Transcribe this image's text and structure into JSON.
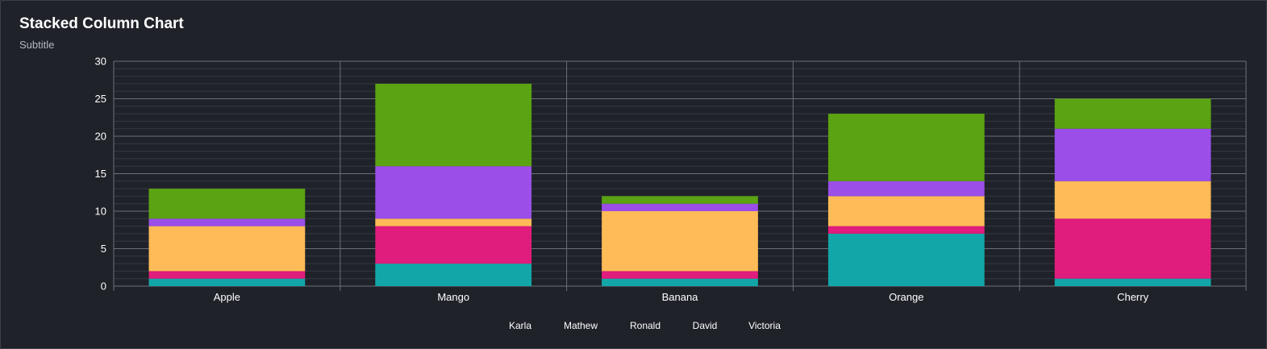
{
  "chart_data": {
    "type": "bar",
    "stacked": true,
    "title": "Stacked Column Chart",
    "subtitle": "Subtitle",
    "categories": [
      "Apple",
      "Mango",
      "Banana",
      "Orange",
      "Cherry"
    ],
    "series": [
      {
        "name": "Karla",
        "color": "#13a6a8",
        "values": [
          1,
          3,
          1,
          7,
          1
        ]
      },
      {
        "name": "Mathew",
        "color": "#e01c7c",
        "values": [
          1,
          5,
          1,
          1,
          8
        ]
      },
      {
        "name": "Ronald",
        "color": "#ffbb57",
        "values": [
          6,
          1,
          8,
          4,
          5
        ]
      },
      {
        "name": "David",
        "color": "#9b4ee8",
        "values": [
          1,
          7,
          1,
          2,
          7
        ]
      },
      {
        "name": "Victoria",
        "color": "#5ba312",
        "values": [
          4,
          11,
          1,
          9,
          4
        ]
      }
    ],
    "y_ticks": [
      0,
      5,
      10,
      15,
      20,
      25,
      30
    ],
    "ylim": [
      0,
      30
    ],
    "grid": true,
    "legend_position": "bottom-center"
  }
}
